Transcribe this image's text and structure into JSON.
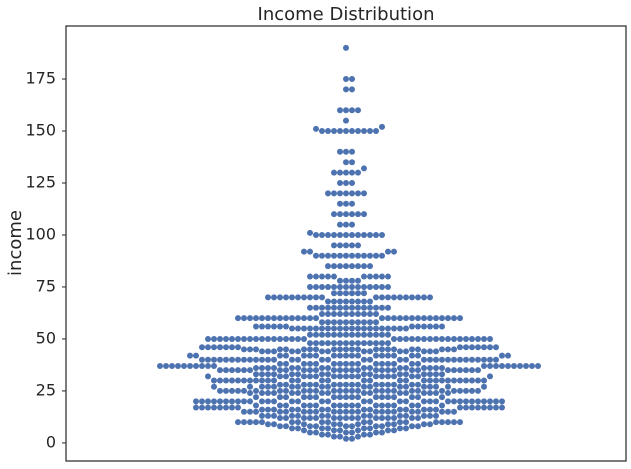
{
  "chart_data": {
    "type": "swarm",
    "title": "Income Distribution",
    "ylabel": "income",
    "color": "#4c72b0",
    "ylim": [
      -8.7,
      200.5
    ],
    "yticks": [
      0,
      25,
      50,
      75,
      100,
      125,
      150,
      175
    ],
    "values": [
      2,
      2,
      3,
      3,
      3,
      4,
      4,
      4,
      4,
      5,
      5,
      5,
      5,
      5,
      5,
      6,
      6,
      6,
      6,
      6,
      6,
      7,
      7,
      7,
      7,
      7,
      7,
      7,
      7,
      8,
      8,
      8,
      8,
      8,
      8,
      8,
      8,
      8,
      8,
      9,
      9,
      9,
      9,
      9,
      9,
      9,
      9,
      9,
      9,
      10,
      10,
      10,
      10,
      10,
      10,
      10,
      10,
      10,
      10,
      10,
      10,
      10,
      10,
      10,
      10,
      10,
      10,
      12,
      12,
      12,
      12,
      12,
      12,
      12,
      12,
      12,
      12,
      12,
      12,
      12,
      12,
      12,
      12,
      13,
      13,
      13,
      13,
      13,
      13,
      13,
      13,
      13,
      13,
      13,
      13,
      13,
      13,
      15,
      15,
      15,
      15,
      15,
      15,
      15,
      15,
      15,
      15,
      15,
      15,
      15,
      15,
      15,
      15,
      15,
      15,
      15,
      15,
      15,
      15,
      16,
      16,
      16,
      16,
      16,
      16,
      16,
      16,
      16,
      16,
      16,
      16,
      16,
      16,
      17,
      17,
      17,
      17,
      17,
      17,
      17,
      17,
      17,
      17,
      17,
      17,
      17,
      17,
      17,
      17,
      18,
      18,
      18,
      18,
      18,
      18,
      18,
      18,
      18,
      18,
      18,
      18,
      18,
      18,
      18,
      18,
      18,
      18,
      20,
      20,
      20,
      20,
      20,
      20,
      20,
      20,
      20,
      20,
      20,
      20,
      20,
      20,
      20,
      20,
      20,
      20,
      20,
      20,
      20,
      20,
      20,
      20,
      20,
      20,
      20,
      20,
      20,
      20,
      20,
      20,
      20,
      20,
      22,
      22,
      22,
      22,
      22,
      22,
      22,
      22,
      22,
      22,
      22,
      22,
      22,
      22,
      22,
      22,
      22,
      22,
      24,
      24,
      24,
      24,
      24,
      24,
      24,
      24,
      24,
      24,
      24,
      24,
      24,
      24,
      24,
      24,
      25,
      25,
      25,
      25,
      25,
      25,
      25,
      25,
      25,
      25,
      25,
      25,
      25,
      25,
      25,
      25,
      25,
      25,
      25,
      25,
      25,
      25,
      25,
      25,
      25,
      25,
      25,
      25,
      27,
      27,
      27,
      27,
      27,
      27,
      27,
      27,
      27,
      27,
      27,
      27,
      27,
      27,
      27,
      27,
      27,
      27,
      28,
      28,
      28,
      28,
      28,
      28,
      28,
      28,
      28,
      28,
      28,
      28,
      28,
      28,
      28,
      28,
      30,
      30,
      30,
      30,
      30,
      30,
      30,
      30,
      30,
      30,
      30,
      30,
      30,
      30,
      30,
      30,
      30,
      30,
      30,
      30,
      30,
      30,
      30,
      30,
      30,
      30,
      30,
      30,
      30,
      30,
      32,
      32,
      32,
      32,
      32,
      32,
      32,
      32,
      32,
      32,
      32,
      32,
      32,
      32,
      32,
      32,
      32,
      32,
      33,
      33,
      33,
      33,
      33,
      33,
      33,
      33,
      33,
      33,
      33,
      33,
      33,
      33,
      33,
      33,
      35,
      35,
      35,
      35,
      35,
      35,
      35,
      35,
      35,
      35,
      35,
      35,
      35,
      35,
      35,
      35,
      35,
      35,
      35,
      35,
      35,
      35,
      35,
      35,
      35,
      35,
      35,
      35,
      36,
      36,
      36,
      36,
      36,
      36,
      36,
      36,
      36,
      36,
      36,
      36,
      36,
      36,
      36,
      36,
      37,
      37,
      37,
      37,
      37,
      37,
      37,
      37,
      37,
      37,
      37,
      37,
      37,
      37,
      37,
      37,
      37,
      37,
      37,
      37,
      38,
      38,
      38,
      38,
      38,
      38,
      38,
      38,
      38,
      38,
      38,
      38,
      38,
      38,
      38,
      38,
      40,
      40,
      40,
      40,
      40,
      40,
      40,
      40,
      40,
      40,
      40,
      40,
      40,
      40,
      40,
      40,
      40,
      40,
      40,
      40,
      40,
      40,
      40,
      40,
      40,
      40,
      40,
      40,
      40,
      40,
      40,
      40,
      40,
      40,
      42,
      42,
      42,
      42,
      42,
      42,
      42,
      42,
      42,
      42,
      42,
      42,
      42,
      42,
      42,
      42,
      42,
      42,
      42,
      42,
      44,
      44,
      44,
      44,
      44,
      44,
      44,
      44,
      44,
      44,
      44,
      44,
      44,
      44,
      45,
      45,
      45,
      45,
      45,
      45,
      45,
      45,
      45,
      45,
      45,
      45,
      45,
      45,
      45,
      45,
      45,
      45,
      45,
      45,
      45,
      45,
      46,
      46,
      46,
      46,
      46,
      46,
      46,
      46,
      46,
      46,
      46,
      46,
      46,
      46,
      48,
      48,
      48,
      48,
      48,
      48,
      48,
      48,
      48,
      48,
      48,
      48,
      48,
      48,
      50,
      50,
      50,
      50,
      50,
      50,
      50,
      50,
      50,
      50,
      50,
      50,
      50,
      50,
      50,
      50,
      50,
      50,
      50,
      50,
      50,
      50,
      50,
      50,
      50,
      50,
      50,
      50,
      50,
      50,
      50,
      50,
      50,
      50,
      52,
      52,
      52,
      52,
      52,
      52,
      52,
      52,
      52,
      52,
      52,
      52,
      52,
      52,
      55,
      55,
      55,
      55,
      55,
      55,
      55,
      55,
      55,
      55,
      55,
      55,
      55,
      55,
      55,
      55,
      55,
      55,
      55,
      55,
      56,
      56,
      56,
      56,
      56,
      56,
      56,
      56,
      56,
      56,
      56,
      56,
      58,
      58,
      58,
      58,
      58,
      58,
      58,
      58,
      58,
      58,
      60,
      60,
      60,
      60,
      60,
      60,
      60,
      60,
      60,
      60,
      60,
      60,
      60,
      60,
      60,
      60,
      60,
      60,
      60,
      60,
      60,
      60,
      60,
      60,
      60,
      60,
      60,
      60,
      62,
      62,
      62,
      62,
      62,
      62,
      62,
      62,
      62,
      62,
      65,
      65,
      65,
      65,
      65,
      65,
      65,
      65,
      65,
      65,
      65,
      65,
      65,
      65,
      68,
      68,
      68,
      68,
      68,
      68,
      68,
      68,
      70,
      70,
      70,
      70,
      70,
      70,
      70,
      70,
      70,
      70,
      70,
      70,
      70,
      70,
      70,
      70,
      70,
      70,
      70,
      70,
      72,
      72,
      72,
      72,
      72,
      72,
      75,
      75,
      75,
      75,
      75,
      75,
      75,
      75,
      75,
      75,
      75,
      75,
      75,
      75,
      78,
      78,
      78,
      78,
      80,
      80,
      80,
      80,
      80,
      80,
      80,
      80,
      80,
      80,
      85,
      85,
      85,
      85,
      85,
      85,
      85,
      85,
      90,
      90,
      90,
      90,
      90,
      90,
      90,
      90,
      90,
      90,
      90,
      90,
      92,
      92,
      92,
      92,
      95,
      95,
      95,
      95,
      95,
      100,
      100,
      100,
      100,
      100,
      100,
      100,
      100,
      100,
      100,
      100,
      100,
      101,
      105,
      105,
      105,
      110,
      110,
      110,
      110,
      110,
      110,
      115,
      115,
      115,
      120,
      120,
      120,
      120,
      120,
      120,
      120,
      125,
      125,
      125,
      130,
      130,
      130,
      130,
      130,
      132,
      135,
      135,
      140,
      140,
      140,
      150,
      150,
      150,
      150,
      150,
      150,
      150,
      150,
      150,
      150,
      151,
      152,
      155,
      160,
      160,
      160,
      160,
      170,
      170,
      175,
      175,
      190
    ]
  }
}
